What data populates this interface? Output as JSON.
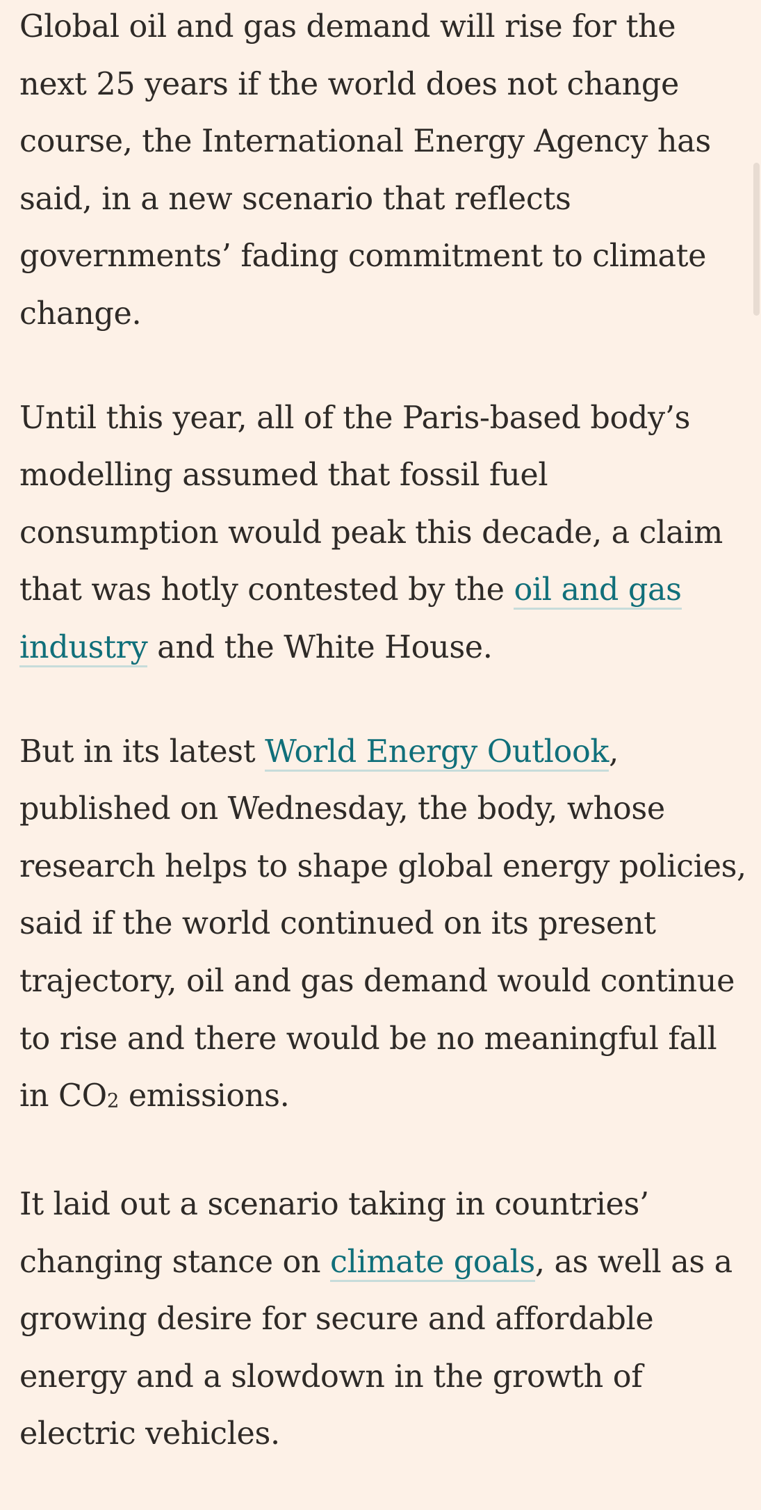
{
  "article": {
    "paragraphs": [
      {
        "p1_text": "Global oil and gas demand will rise for the next 25 years if the world does not change course, the International Energy Agency has said, in a new scenario that reflects governments’ fading commitment to climate change."
      },
      {
        "p2_before": "Until this year, all of the Paris-based body’s modelling assumed that fossil fuel consumption would peak this decade, a claim that was hotly contested by the ",
        "p2_link": "oil and gas industry",
        "p2_after": " and the White House."
      },
      {
        "p3_before": "But in its latest ",
        "p3_link": "World Energy Outlook",
        "p3_after_1": ", published on Wednesday, the body, whose research helps to shape global energy policies, said if the world continued on its present trajectory, oil and gas demand would continue to rise and there would be no meaningful fall in CO",
        "p3_sub": "2",
        "p3_after_2": " emissions."
      },
      {
        "p4_before": "It laid out a scenario taking in countries’ changing stance on ",
        "p4_link": "climate goals",
        "p4_after": ", as well as a growing desire for secure and affordable energy and a slowdown in the growth of electric vehicles."
      }
    ]
  },
  "colors": {
    "background": "#fdf1e7",
    "text": "#2e2a27",
    "link": "#106f7a",
    "link_underline": "#c7dcda"
  }
}
